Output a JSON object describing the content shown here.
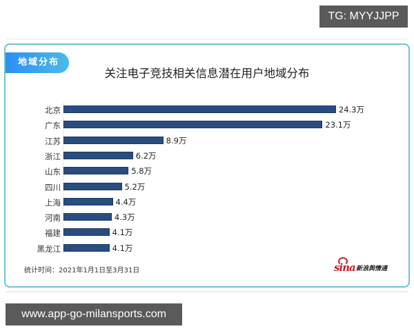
{
  "watermarks": {
    "top_right": "TG: MYYJJPP",
    "bottom_left": "www.app-go-milansports.com"
  },
  "card": {
    "tag": "地域分布",
    "footnote": "统计时间：2021年1月1日至3月31日",
    "source_logo": {
      "word": "sina",
      "subtitle": "新浪舆情通"
    }
  },
  "chart_data": {
    "type": "bar",
    "orientation": "horizontal",
    "title": "关注电子竞技相关信息潜在用户地域分布",
    "xlabel": "",
    "ylabel": "",
    "unit": "万",
    "categories": [
      "北京",
      "广东",
      "江苏",
      "浙江",
      "山东",
      "四川",
      "上海",
      "河南",
      "福建",
      "黑龙江"
    ],
    "values": [
      24.3,
      23.1,
      8.9,
      6.2,
      5.8,
      5.2,
      4.4,
      4.3,
      4.1,
      4.1
    ],
    "value_labels": [
      "24.3万",
      "23.1万",
      "8.9万",
      "6.2万",
      "5.8万",
      "5.2万",
      "4.4万",
      "4.3万",
      "4.1万",
      "4.1万"
    ],
    "bar_color": "#2a4d80",
    "grid": false,
    "legend": null,
    "note": "统计时间：2021年1月1日至3月31日"
  },
  "colors": {
    "card_border": "#6cc3d3",
    "tag_gradient": [
      "#2d8ef0",
      "#4cbbe8"
    ],
    "bar": "#2a4d80",
    "sina_red": "#c81d25"
  }
}
